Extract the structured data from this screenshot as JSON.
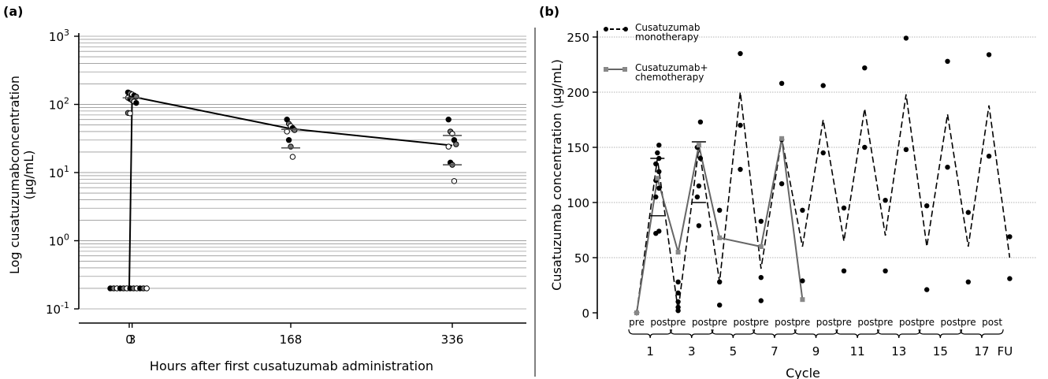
{
  "chart_data": [
    {
      "panel": "(a)",
      "type": "scatter",
      "xlabel": "Hours after first cusatuzumab administration",
      "ylabel_line1": "Log cusatuzumabconcentration",
      "ylabel_line2": "(µg/mL)",
      "yscale": "log",
      "ylim": [
        0.1,
        1000
      ],
      "xlim": [
        -40,
        380
      ],
      "x_ticks": [
        0,
        3,
        168,
        336
      ],
      "x_tick_labels": [
        "0",
        "3",
        "168",
        "336"
      ],
      "y_tick_labels": [
        {
          "base": "10",
          "exp": "-1",
          "value": 0.1
        },
        {
          "base": "10",
          "exp": "0",
          "value": 1
        },
        {
          "base": "10",
          "exp": "1",
          "value": 10
        },
        {
          "base": "10",
          "exp": "2",
          "value": 100
        },
        {
          "base": "10",
          "exp": "3",
          "value": 1000
        }
      ],
      "mean_line": {
        "x": [
          0,
          3,
          168,
          336
        ],
        "y": [
          0.2,
          130,
          44,
          25
        ]
      },
      "points": {
        "x0": [
          0.2,
          0.2,
          0.2,
          0.2,
          0.2,
          0.2,
          0.2,
          0.2,
          0.2,
          0.2,
          0.2,
          0.2
        ],
        "x3": [
          150,
          145,
          140,
          135,
          130,
          125,
          120,
          115,
          110,
          105,
          75,
          74
        ],
        "x168": [
          60,
          52,
          48,
          45,
          42,
          40,
          30,
          24,
          17
        ],
        "x336": [
          60,
          40,
          37,
          30,
          26,
          24,
          14,
          13,
          7.5
        ]
      },
      "medians": [
        {
          "x": 3,
          "y": 125
        },
        {
          "x": 168,
          "y": 43
        },
        {
          "x": 168,
          "y": 23
        },
        {
          "x": 336,
          "y": 35
        },
        {
          "x": 336,
          "y": 13
        }
      ]
    },
    {
      "panel": "(b)",
      "type": "line",
      "xlabel": "Cycle",
      "ylabel": "Cusatuzumab concentration (µg/mL)",
      "ylim": [
        0,
        250
      ],
      "y_ticks": [
        0,
        50,
        100,
        150,
        200,
        250
      ],
      "cycle_labels": [
        "1",
        "3",
        "5",
        "7",
        "9",
        "11",
        "13",
        "15",
        "17",
        "FU"
      ],
      "prepost_labels": [
        "pre",
        "post"
      ],
      "x_positions": [
        "1-pre",
        "1-post",
        "3-pre",
        "3-post",
        "5-pre",
        "5-post",
        "7-pre",
        "7-post",
        "9-pre",
        "9-post",
        "11-pre",
        "11-post",
        "13-pre",
        "13-post",
        "15-pre",
        "15-post",
        "17-pre",
        "17-post",
        "FU"
      ],
      "series": [
        {
          "name": "Cusatuzumab monotherapy",
          "style": "dashed",
          "color": "#000000",
          "mean": [
            0,
            140,
            2,
            150,
            28,
            200,
            40,
            158,
            60,
            175,
            65,
            185,
            70,
            198,
            60,
            180,
            60,
            188,
            50
          ]
        },
        {
          "name": "Cusatuzumab+ chemotherapy",
          "style": "solid",
          "color": "#666666",
          "mean": [
            0,
            122,
            55,
            152,
            68,
            null,
            60,
            158,
            12
          ]
        }
      ],
      "individual_points": [
        {
          "pos": 0,
          "y": 0
        },
        {
          "pos": 0,
          "y": 0
        },
        {
          "pos": 1,
          "y": 152
        },
        {
          "pos": 1,
          "y": 145
        },
        {
          "pos": 1,
          "y": 140
        },
        {
          "pos": 1,
          "y": 135
        },
        {
          "pos": 1,
          "y": 128
        },
        {
          "pos": 1,
          "y": 120
        },
        {
          "pos": 1,
          "y": 113
        },
        {
          "pos": 1,
          "y": 105
        },
        {
          "pos": 1,
          "y": 74
        },
        {
          "pos": 1,
          "y": 72
        },
        {
          "pos": 2,
          "y": 28
        },
        {
          "pos": 2,
          "y": 18
        },
        {
          "pos": 2,
          "y": 10
        },
        {
          "pos": 2,
          "y": 5
        },
        {
          "pos": 2,
          "y": 2
        },
        {
          "pos": 3,
          "y": 173
        },
        {
          "pos": 3,
          "y": 150
        },
        {
          "pos": 3,
          "y": 140
        },
        {
          "pos": 3,
          "y": 115
        },
        {
          "pos": 3,
          "y": 105
        },
        {
          "pos": 3,
          "y": 79
        },
        {
          "pos": 4,
          "y": 93
        },
        {
          "pos": 4,
          "y": 28
        },
        {
          "pos": 4,
          "y": 7
        },
        {
          "pos": 5,
          "y": 235
        },
        {
          "pos": 5,
          "y": 170
        },
        {
          "pos": 5,
          "y": 130
        },
        {
          "pos": 6,
          "y": 83
        },
        {
          "pos": 6,
          "y": 32
        },
        {
          "pos": 6,
          "y": 11
        },
        {
          "pos": 7,
          "y": 208
        },
        {
          "pos": 7,
          "y": 157
        },
        {
          "pos": 7,
          "y": 117
        },
        {
          "pos": 8,
          "y": 93
        },
        {
          "pos": 8,
          "y": 29
        },
        {
          "pos": 9,
          "y": 206
        },
        {
          "pos": 9,
          "y": 145
        },
        {
          "pos": 10,
          "y": 95
        },
        {
          "pos": 10,
          "y": 38
        },
        {
          "pos": 11,
          "y": 222
        },
        {
          "pos": 11,
          "y": 150
        },
        {
          "pos": 12,
          "y": 102
        },
        {
          "pos": 12,
          "y": 38
        },
        {
          "pos": 13,
          "y": 249
        },
        {
          "pos": 13,
          "y": 148
        },
        {
          "pos": 14,
          "y": 97
        },
        {
          "pos": 14,
          "y": 21
        },
        {
          "pos": 15,
          "y": 228
        },
        {
          "pos": 15,
          "y": 132
        },
        {
          "pos": 16,
          "y": 91
        },
        {
          "pos": 16,
          "y": 28
        },
        {
          "pos": 17,
          "y": 234
        },
        {
          "pos": 17,
          "y": 142
        },
        {
          "pos": 18,
          "y": 69
        },
        {
          "pos": 18,
          "y": 31
        }
      ],
      "chemo_points": [
        {
          "pos": 0,
          "y": 0
        },
        {
          "pos": 1,
          "y": 122
        },
        {
          "pos": 2,
          "y": 55
        },
        {
          "pos": 3,
          "y": 152
        },
        {
          "pos": 4,
          "y": 68
        },
        {
          "pos": 6,
          "y": 60
        },
        {
          "pos": 7,
          "y": 158
        },
        {
          "pos": 8,
          "y": 12
        }
      ],
      "legend": {
        "placement": "top-left"
      }
    }
  ]
}
